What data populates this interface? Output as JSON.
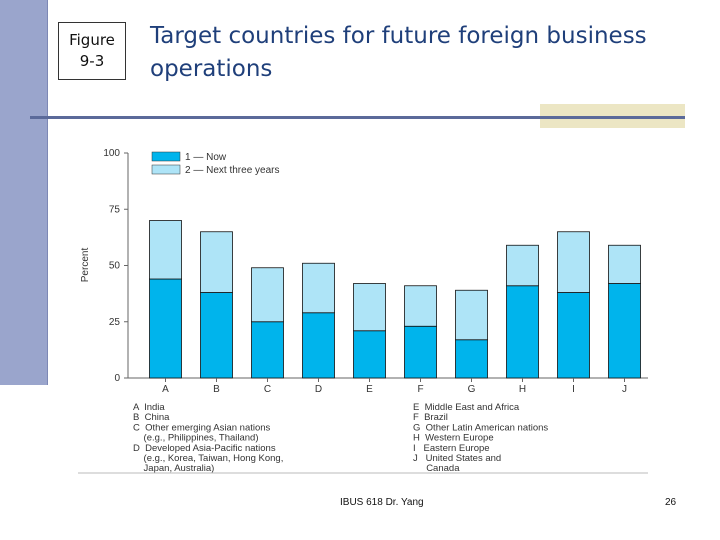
{
  "slide": {
    "figure_label": "Figure\n9-3",
    "title": "Target countries for future foreign business operations",
    "footer": "IBUS 618 Dr. Yang",
    "page_number": "26"
  },
  "colors": {
    "now": "#00b4ec",
    "next": "#aee4f7",
    "title": "#1f3f7a"
  },
  "chart_data": {
    "type": "bar",
    "stacked": true,
    "ylabel": "Percent",
    "ylim": [
      0,
      100
    ],
    "yticks": [
      0,
      25,
      50,
      75,
      100
    ],
    "categories": [
      "A",
      "B",
      "C",
      "D",
      "E",
      "F",
      "G",
      "H",
      "I",
      "J"
    ],
    "series": [
      {
        "name": "1 — Now",
        "values": [
          44,
          38,
          25,
          29,
          21,
          23,
          17,
          41,
          38,
          42
        ]
      },
      {
        "name": "2 — Next three years",
        "values": [
          26,
          27,
          24,
          22,
          21,
          18,
          22,
          18,
          27,
          17
        ]
      }
    ],
    "legend": [
      "1 — Now",
      "2 — Next three years"
    ],
    "category_key_left": [
      "A  India",
      "B  China",
      "C  Other emerging Asian nations",
      "    (e.g., Philippines, Thailand)",
      "D  Developed Asia-Pacific nations",
      "    (e.g., Korea, Taiwan, Hong Kong,",
      "    Japan, Australia)"
    ],
    "category_key_right": [
      "E  Middle East and Africa",
      "F  Brazil",
      "G  Other Latin American nations",
      "H  Western Europe",
      "I   Eastern Europe",
      "J   United States and",
      "     Canada"
    ]
  }
}
